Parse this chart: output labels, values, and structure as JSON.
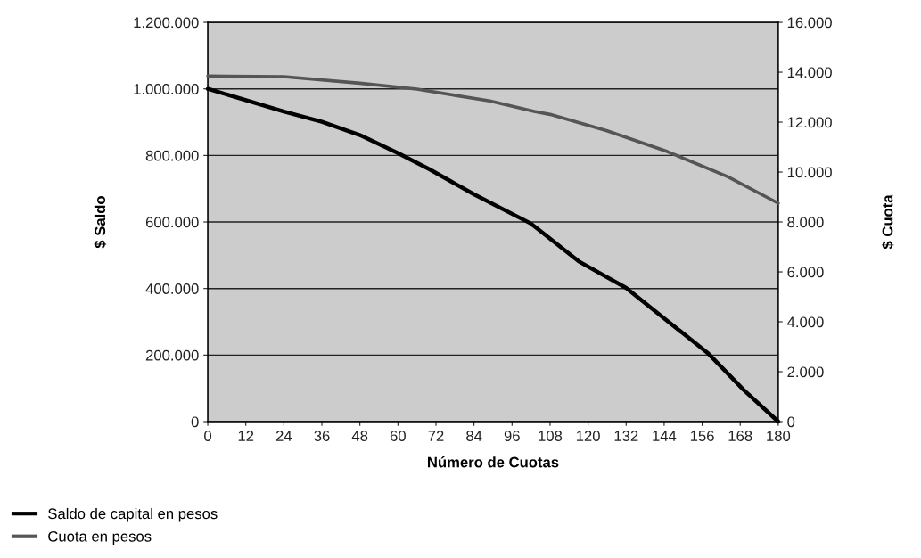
{
  "chart_data": {
    "type": "line",
    "xlabel": "Número de Cuotas",
    "ylabel": "$ Saldo",
    "y2label": "$ Cuota",
    "series": [
      {
        "name": "Saldo de capital en pesos",
        "color": "#000000",
        "x": [
          0,
          24,
          36,
          48,
          60,
          70,
          84,
          102,
          117,
          132,
          145,
          158,
          169,
          180
        ],
        "values": [
          1000000,
          932000,
          901000,
          861000,
          807000,
          758000,
          683000,
          595000,
          482000,
          402000,
          303000,
          204000,
          96000,
          0
        ]
      },
      {
        "name": "Cuota en pesos",
        "color": "#555555",
        "axis": "y2",
        "x": [
          0,
          24,
          48,
          66,
          89,
          103,
          108,
          126,
          145,
          164,
          180
        ],
        "values": [
          13850,
          13820,
          13560,
          13320,
          12850,
          12430,
          12310,
          11650,
          10820,
          9820,
          8750
        ]
      }
    ],
    "xlim": [
      0,
      180
    ],
    "xticks": [
      0,
      12,
      24,
      36,
      48,
      60,
      72,
      84,
      96,
      108,
      120,
      132,
      144,
      156,
      168,
      180
    ],
    "ylim": [
      0,
      1200000
    ],
    "yticks": [
      {
        "value": 0,
        "label": "0"
      },
      {
        "value": 200000,
        "label": "200.000"
      },
      {
        "value": 400000,
        "label": "400.000"
      },
      {
        "value": 600000,
        "label": "600.000"
      },
      {
        "value": 800000,
        "label": "800.000"
      },
      {
        "value": 1000000,
        "label": "1.000.000"
      },
      {
        "value": 1200000,
        "label": "1.200.000"
      }
    ],
    "y2lim": [
      0,
      16000
    ],
    "y2ticks": [
      {
        "value": 0,
        "label": "0"
      },
      {
        "value": 2000,
        "label": "2.000"
      },
      {
        "value": 4000,
        "label": "4.000"
      },
      {
        "value": 6000,
        "label": "6.000"
      },
      {
        "value": 8000,
        "label": "8.000"
      },
      {
        "value": 10000,
        "label": "10.000"
      },
      {
        "value": 12000,
        "label": "12.000"
      },
      {
        "value": 14000,
        "label": "14.000"
      },
      {
        "value": 16000,
        "label": "16.000"
      }
    ],
    "grid": "y",
    "legend": "bottom left",
    "marker": "none",
    "line_style": "solid"
  }
}
